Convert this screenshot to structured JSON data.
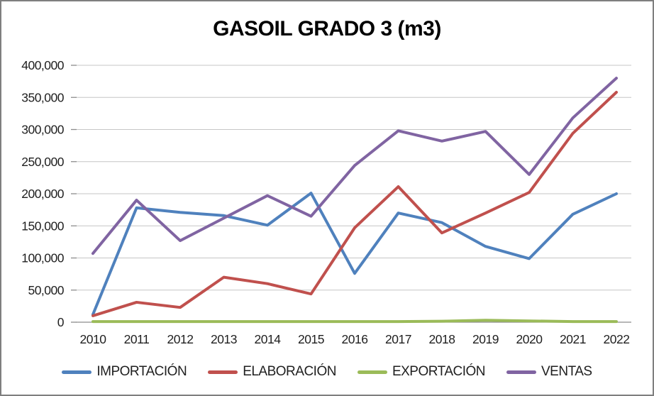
{
  "chart_data": {
    "type": "line",
    "title": "GASOIL GRADO 3 (m3)",
    "xlabel": "",
    "ylabel": "",
    "categories": [
      "2010",
      "2011",
      "2012",
      "2013",
      "2014",
      "2015",
      "2016",
      "2017",
      "2018",
      "2019",
      "2020",
      "2021",
      "2022"
    ],
    "series": [
      {
        "name": "IMPORTACIÓN",
        "color": "#4F81BD",
        "values": [
          12000,
          178000,
          171000,
          166000,
          151000,
          201000,
          76000,
          170000,
          155000,
          118000,
          99000,
          168000,
          200000
        ]
      },
      {
        "name": "ELABORACIÓN",
        "color": "#C0504D",
        "values": [
          10000,
          31000,
          23000,
          70000,
          60000,
          44000,
          147000,
          211000,
          139000,
          170000,
          202000,
          294000,
          358000
        ]
      },
      {
        "name": "EXPORTACIÓN",
        "color": "#9BBB59",
        "values": [
          1000,
          1000,
          1000,
          1000,
          1000,
          1000,
          1000,
          1000,
          1500,
          3000,
          2000,
          1000,
          1000
        ]
      },
      {
        "name": "VENTAS",
        "color": "#8064A2",
        "values": [
          107000,
          190000,
          127000,
          162000,
          197000,
          165000,
          244000,
          298000,
          282000,
          297000,
          230000,
          318000,
          380000
        ]
      }
    ],
    "ylim": [
      0,
      400000
    ],
    "yticks": [
      0,
      50000,
      100000,
      150000,
      200000,
      250000,
      300000,
      350000,
      400000
    ],
    "ytick_labels": [
      "0",
      "50,000",
      "100,000",
      "150,000",
      "200,000",
      "250,000",
      "300,000",
      "350,000",
      "400,000"
    ],
    "grid": "horizontal",
    "legend_position": "bottom",
    "colors": {
      "gridline": "#C6C6C6",
      "axis": "#8C8C8C",
      "text": "#1F1F1F",
      "border": "#7F7F7F",
      "background": "#FFFFFF"
    }
  }
}
